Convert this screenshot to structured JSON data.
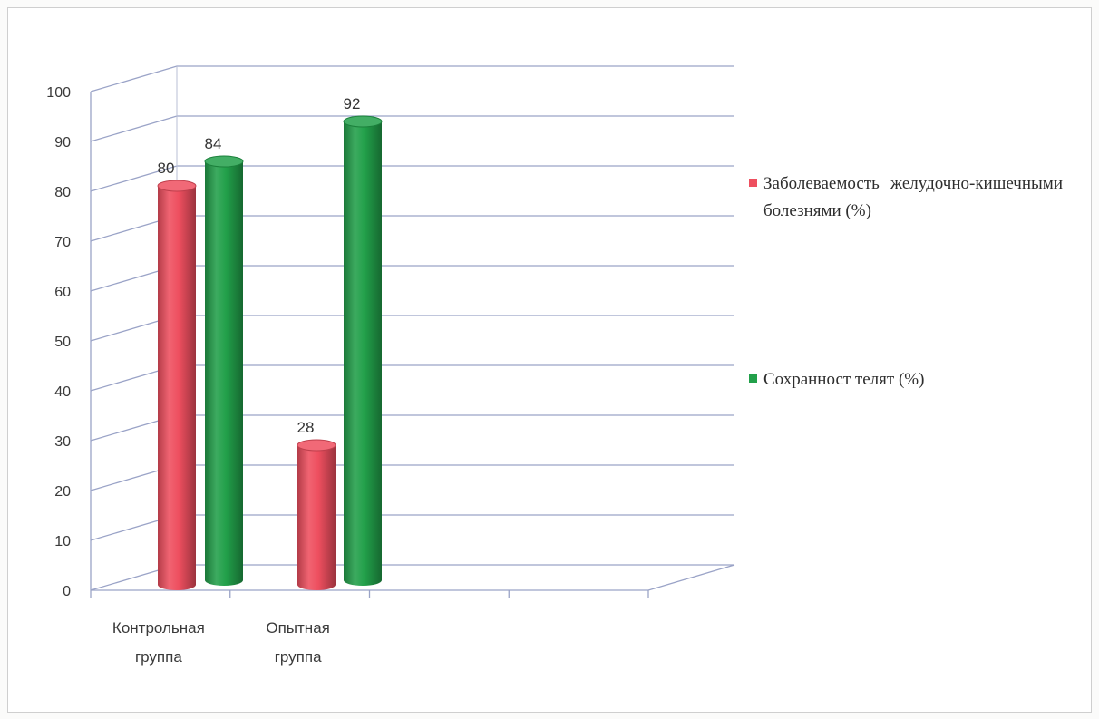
{
  "chart_data": {
    "type": "bar",
    "style": "3d-cylinder",
    "categories": [
      "Контрольная группа",
      "Опытная группа"
    ],
    "category_lines": [
      [
        "Контрольная",
        "группа"
      ],
      [
        "Опытная",
        "группа"
      ]
    ],
    "series": [
      {
        "name": "Заболеваемость желудочно-кишечными болезнями (%)",
        "values": [
          80,
          28
        ],
        "color": "#ee4f5f"
      },
      {
        "name": "Сохранност телят (%)",
        "values": [
          84,
          92
        ],
        "color": "#22a04a"
      }
    ],
    "ylim": [
      0,
      100
    ],
    "yticks": [
      0,
      10,
      20,
      30,
      40,
      50,
      60,
      70,
      80,
      90,
      100
    ],
    "grid": true,
    "legend": "right",
    "title": "",
    "xlabel": "",
    "ylabel": ""
  },
  "legend": {
    "items": [
      {
        "label": "Заболеваемость желудочно-кишечными болезнями (%)",
        "color": "#ee4f5f"
      },
      {
        "label": "Сохранност телят (%)",
        "color": "#22a04a"
      }
    ]
  }
}
